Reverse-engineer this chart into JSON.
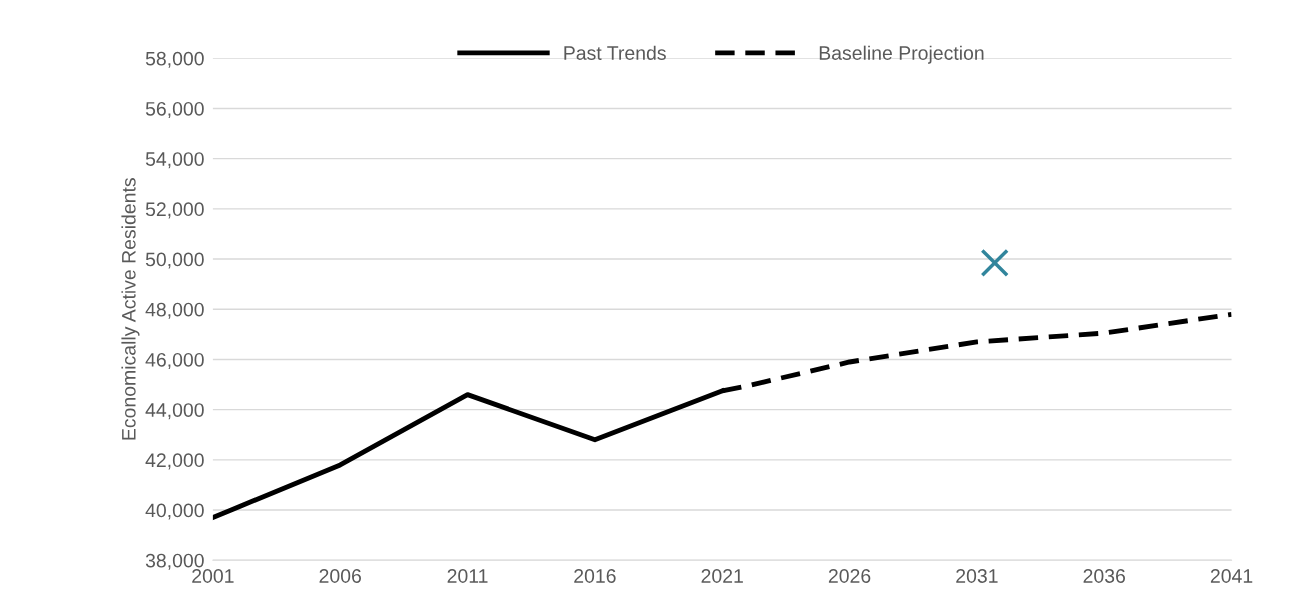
{
  "chart_data": {
    "type": "line",
    "ylabel": "Economically Active Residents",
    "series": [
      {
        "name": "Past Trends",
        "color": "#000000",
        "line_style": "solid",
        "x": [
          2001,
          2006,
          2011,
          2016,
          2021
        ],
        "values": [
          39700,
          41800,
          44600,
          42800,
          44750
        ]
      },
      {
        "name": "Baseline Projection",
        "color": "#000000",
        "line_style": "dashed",
        "x": [
          2021,
          2022,
          2026,
          2031,
          2036,
          2041
        ],
        "values": [
          44750,
          44950,
          45900,
          46700,
          47050,
          47800
        ]
      },
      {
        "type": "scatter",
        "color": "#31859c",
        "marker": "cross",
        "x": [
          2031.7
        ],
        "values": [
          49850
        ]
      }
    ],
    "xlim": [
      2001,
      2041
    ],
    "xticks": [
      2001,
      2006,
      2011,
      2016,
      2021,
      2026,
      2031,
      2036,
      2041
    ],
    "ylim": [
      38000,
      58000
    ],
    "yticks": [
      {
        "value": 38000,
        "label": "38,000"
      },
      {
        "value": 40000,
        "label": "40,000"
      },
      {
        "value": 42000,
        "label": "42,000"
      },
      {
        "value": 44000,
        "label": "44,000"
      },
      {
        "value": 46000,
        "label": "46,000"
      },
      {
        "value": 48000,
        "label": "48,000"
      },
      {
        "value": 50000,
        "label": "50,000"
      },
      {
        "value": 52000,
        "label": "52,000"
      },
      {
        "value": 54000,
        "label": "54,000"
      },
      {
        "value": 56000,
        "label": "56,000"
      },
      {
        "value": 58000,
        "label": "58,000"
      }
    ],
    "grid": "y",
    "legend": "top"
  }
}
